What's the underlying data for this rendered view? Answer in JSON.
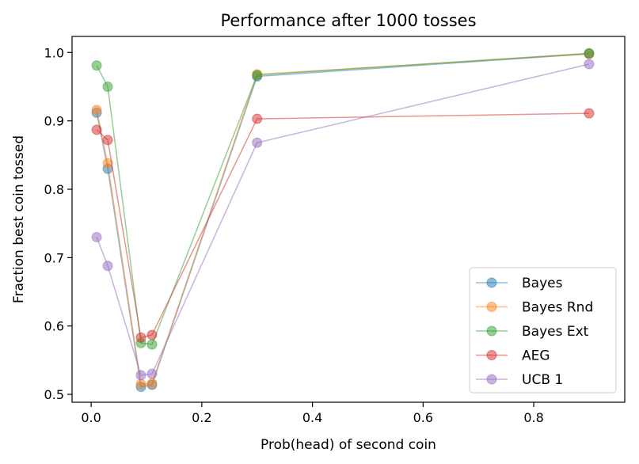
{
  "chart_data": {
    "type": "line",
    "title": "Performance after 1000 tosses",
    "xlabel": "Prob(head) of second coin",
    "ylabel": "Fraction best coin tossed",
    "xlim": [
      -0.0345,
      0.9645
    ],
    "ylim": [
      0.4885,
      1.0235
    ],
    "xticks": [
      0.0,
      0.2,
      0.4,
      0.6,
      0.8
    ],
    "xtick_labels": [
      "0.0",
      "0.2",
      "0.4",
      "0.6",
      "0.8"
    ],
    "yticks": [
      0.5,
      0.6,
      0.7,
      0.8,
      0.9,
      1.0
    ],
    "ytick_labels": [
      "0.5",
      "0.6",
      "0.7",
      "0.8",
      "0.9",
      "1.0"
    ],
    "legend_position": "lower-right",
    "x": [
      0.01,
      0.03,
      0.09,
      0.11,
      0.3,
      0.9
    ],
    "series": [
      {
        "name": "Bayes",
        "color": "#1f77b4",
        "values": [
          0.912,
          0.83,
          0.511,
          0.514,
          0.965,
          0.998
        ]
      },
      {
        "name": "Bayes Rnd",
        "color": "#ff7f0e",
        "values": [
          0.916,
          0.838,
          0.515,
          0.516,
          0.968,
          0.998
        ]
      },
      {
        "name": "Bayes Ext",
        "color": "#2ca02c",
        "values": [
          0.981,
          0.95,
          0.575,
          0.573,
          0.967,
          0.999
        ]
      },
      {
        "name": "AEG",
        "color": "#d62728",
        "values": [
          0.887,
          0.872,
          0.583,
          0.587,
          0.903,
          0.911
        ]
      },
      {
        "name": "UCB 1",
        "color": "#9467bd",
        "values": [
          0.73,
          0.688,
          0.528,
          0.53,
          0.868,
          0.983
        ]
      }
    ]
  }
}
